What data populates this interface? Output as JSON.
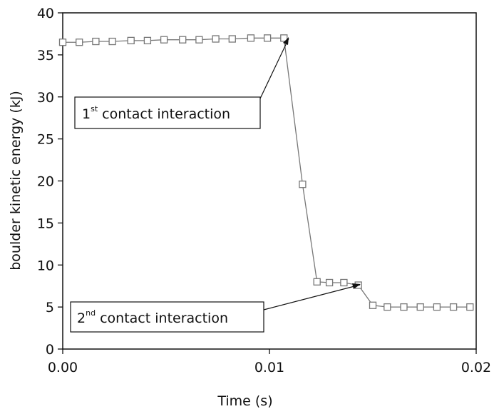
{
  "chart_data": {
    "type": "line",
    "xlabel": "Time (s)",
    "ylabel": "boulder kinetic energy (kJ)",
    "x": [
      0,
      0.0008,
      0.0016,
      0.0024,
      0.0033,
      0.0041,
      0.0049,
      0.0058,
      0.0066,
      0.0074,
      0.0082,
      0.0091,
      0.0099,
      0.0107,
      0.0116,
      0.0123,
      0.0129,
      0.0136,
      0.0143,
      0.015,
      0.0157,
      0.0165,
      0.0173,
      0.0181,
      0.0189,
      0.0197
    ],
    "series": [
      {
        "color": "#777777",
        "values": [
          36.5,
          36.5,
          36.6,
          36.6,
          36.7,
          36.7,
          36.8,
          36.8,
          36.8,
          36.9,
          36.9,
          37.0,
          37.0,
          37.0,
          19.6,
          8.0,
          7.9,
          7.9,
          7.6,
          5.2,
          5.0,
          5.0,
          5.0,
          5.0,
          5.0,
          5.0
        ]
      }
    ],
    "xlim": [
      0,
      0.02
    ],
    "xticks": [
      {
        "value": 0,
        "label": "0.00"
      },
      0.01,
      0.02
    ],
    "ylim": [
      0,
      40
    ],
    "yticks": [
      0,
      5,
      10,
      15,
      20,
      25,
      30,
      35,
      40
    ],
    "annotations": [
      {
        "number": "1",
        "suffix": "st",
        "text": " contact interaction"
      },
      {
        "number": "2",
        "suffix": "nd",
        "text": " contact interaction"
      }
    ]
  }
}
